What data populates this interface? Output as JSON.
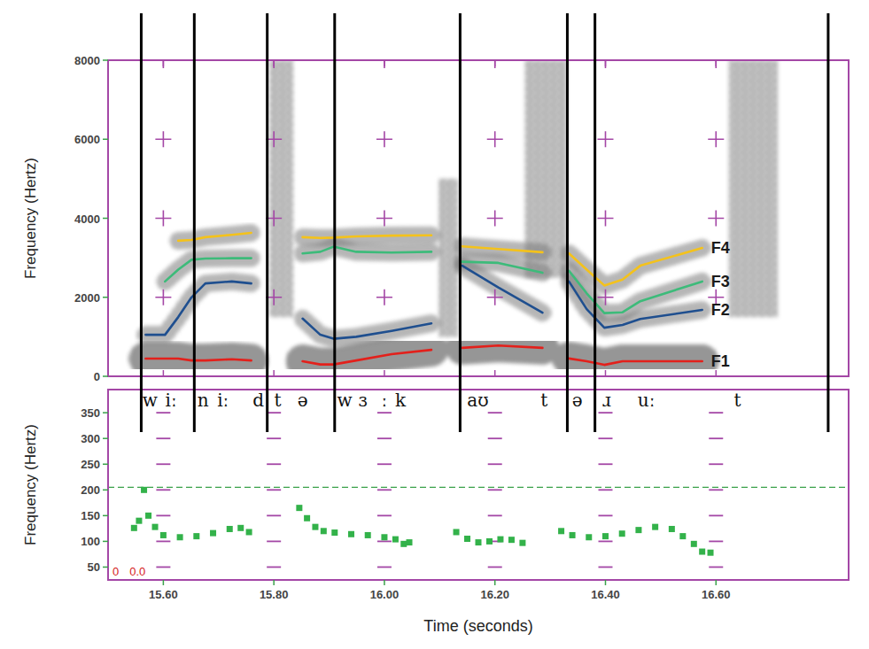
{
  "chart_data": [
    {
      "type": "spectrogram",
      "ylabel": "Frequency (Hertz)",
      "xlim": [
        15.5,
        16.84
      ],
      "ylim": [
        0,
        8000
      ],
      "yticks": [
        0,
        2000,
        4000,
        6000,
        8000
      ],
      "xticks": [
        15.6,
        15.8,
        16.0,
        16.2,
        16.4,
        16.6
      ],
      "tick_labels": "y",
      "grid": true,
      "x": [
        15.568,
        15.603,
        15.627,
        15.651,
        15.676,
        15.724,
        15.759,
        15.8,
        15.852,
        15.884,
        15.908,
        15.949,
        16.013,
        16.085,
        16.11,
        16.141,
        16.206,
        16.286,
        16.31,
        16.334,
        16.366,
        16.398,
        16.431,
        16.463,
        16.575
      ],
      "series": [
        {
          "name": "F1",
          "color": "#e3201b",
          "values": [
            448,
            448,
            448,
            400,
            400,
            430,
            400,
            null,
            380,
            300,
            300,
            400,
            560,
            670,
            null,
            720,
            780,
            720,
            null,
            450,
            380,
            290,
            380,
            380,
            380
          ]
        },
        {
          "name": "F2",
          "color": "#1f4f8f",
          "values": [
            1050,
            1050,
            1500,
            2000,
            2350,
            2400,
            2350,
            null,
            1460,
            1050,
            950,
            1000,
            1150,
            1340,
            null,
            2800,
            2250,
            1610,
            null,
            2400,
            1700,
            1230,
            1300,
            1450,
            1680
          ]
        },
        {
          "name": "F3",
          "color": "#3dbb7a",
          "values": [
            null,
            2400,
            2700,
            2950,
            2980,
            2990,
            2990,
            null,
            3110,
            3150,
            3280,
            3150,
            3130,
            3150,
            null,
            2900,
            2870,
            2620,
            null,
            2670,
            2100,
            1600,
            1620,
            1900,
            2400
          ]
        },
        {
          "name": "F4",
          "color": "#f4c21b",
          "values": [
            null,
            null,
            3430,
            3450,
            3520,
            3580,
            3630,
            null,
            3520,
            3500,
            3510,
            3540,
            3560,
            3570,
            null,
            3290,
            3220,
            3140,
            null,
            3110,
            2700,
            2300,
            2450,
            2800,
            3250
          ]
        }
      ],
      "frication": [
        {
          "start": 15.792,
          "end": 15.835,
          "low": 1500,
          "high": 8000
        },
        {
          "start": 16.098,
          "end": 16.133,
          "low": 1000,
          "high": 5000
        },
        {
          "start": 16.254,
          "end": 16.33,
          "low": 2500,
          "high": 8000
        },
        {
          "start": 16.623,
          "end": 16.712,
          "low": 1500,
          "high": 8000
        }
      ],
      "boundaries": [
        15.56,
        15.656,
        15.788,
        15.91,
        16.137,
        16.331,
        16.381,
        16.803
      ],
      "segments": [
        {
          "label": "w",
          "time": 15.576
        },
        {
          "label": "iː",
          "time": 15.614
        },
        {
          "label": "n",
          "time": 15.672
        },
        {
          "label": "iː",
          "time": 15.708
        },
        {
          "label": "d",
          "time": 15.772
        },
        {
          "label": "t",
          "time": 15.807
        },
        {
          "label": "ə",
          "time": 15.852
        },
        {
          "label": "w",
          "time": 15.928
        },
        {
          "label": "ɜ",
          "time": 15.961
        },
        {
          "label": "ː",
          "time": 16.0
        },
        {
          "label": "k",
          "time": 16.029
        },
        {
          "label": "aʊ",
          "time": 16.169
        },
        {
          "label": "t",
          "time": 16.289
        },
        {
          "label": "ə",
          "time": 16.349
        },
        {
          "label": "ɹ",
          "time": 16.402
        },
        {
          "label": "uː",
          "time": 16.474
        },
        {
          "label": "t",
          "time": 16.639
        }
      ]
    },
    {
      "type": "scatter",
      "marker": "square",
      "line_style": "none",
      "color": "#33b24a",
      "ylabel": "Frequency (Hertz)",
      "xlabel": "Time (seconds)",
      "xlim": [
        15.5,
        16.84
      ],
      "ylim": [
        25,
        395
      ],
      "yticks": [
        50,
        100,
        150,
        200,
        250,
        300,
        350
      ],
      "xticks": [
        {
          "value": 15.6,
          "label": "15.60"
        },
        {
          "value": 15.8,
          "label": "15.80"
        },
        {
          "value": 16.0,
          "label": "16.00"
        },
        {
          "value": 16.2,
          "label": "16.20"
        },
        {
          "value": 16.4,
          "label": "16.40"
        },
        {
          "value": 16.6,
          "label": "16.60"
        }
      ],
      "grid": true,
      "reference_line": 205,
      "annotations": [
        "0",
        "0.0"
      ],
      "x": [
        15.547,
        15.556,
        15.565,
        15.573,
        15.585,
        15.6,
        15.63,
        15.66,
        15.69,
        15.72,
        15.74,
        15.755,
        15.846,
        15.86,
        15.875,
        15.89,
        15.91,
        15.94,
        15.97,
        16.0,
        16.02,
        16.035,
        16.045,
        16.13,
        16.15,
        16.17,
        16.19,
        16.21,
        16.23,
        16.25,
        16.32,
        16.34,
        16.37,
        16.4,
        16.43,
        16.46,
        16.49,
        16.52,
        16.54,
        16.56,
        16.575,
        16.59
      ],
      "values": [
        126,
        140,
        200,
        150,
        128,
        112,
        108,
        110,
        116,
        124,
        126,
        118,
        165,
        145,
        128,
        120,
        117,
        114,
        112,
        108,
        104,
        95,
        98,
        118,
        105,
        98,
        100,
        104,
        103,
        97,
        120,
        112,
        108,
        110,
        115,
        122,
        128,
        124,
        110,
        95,
        80,
        78
      ]
    }
  ]
}
